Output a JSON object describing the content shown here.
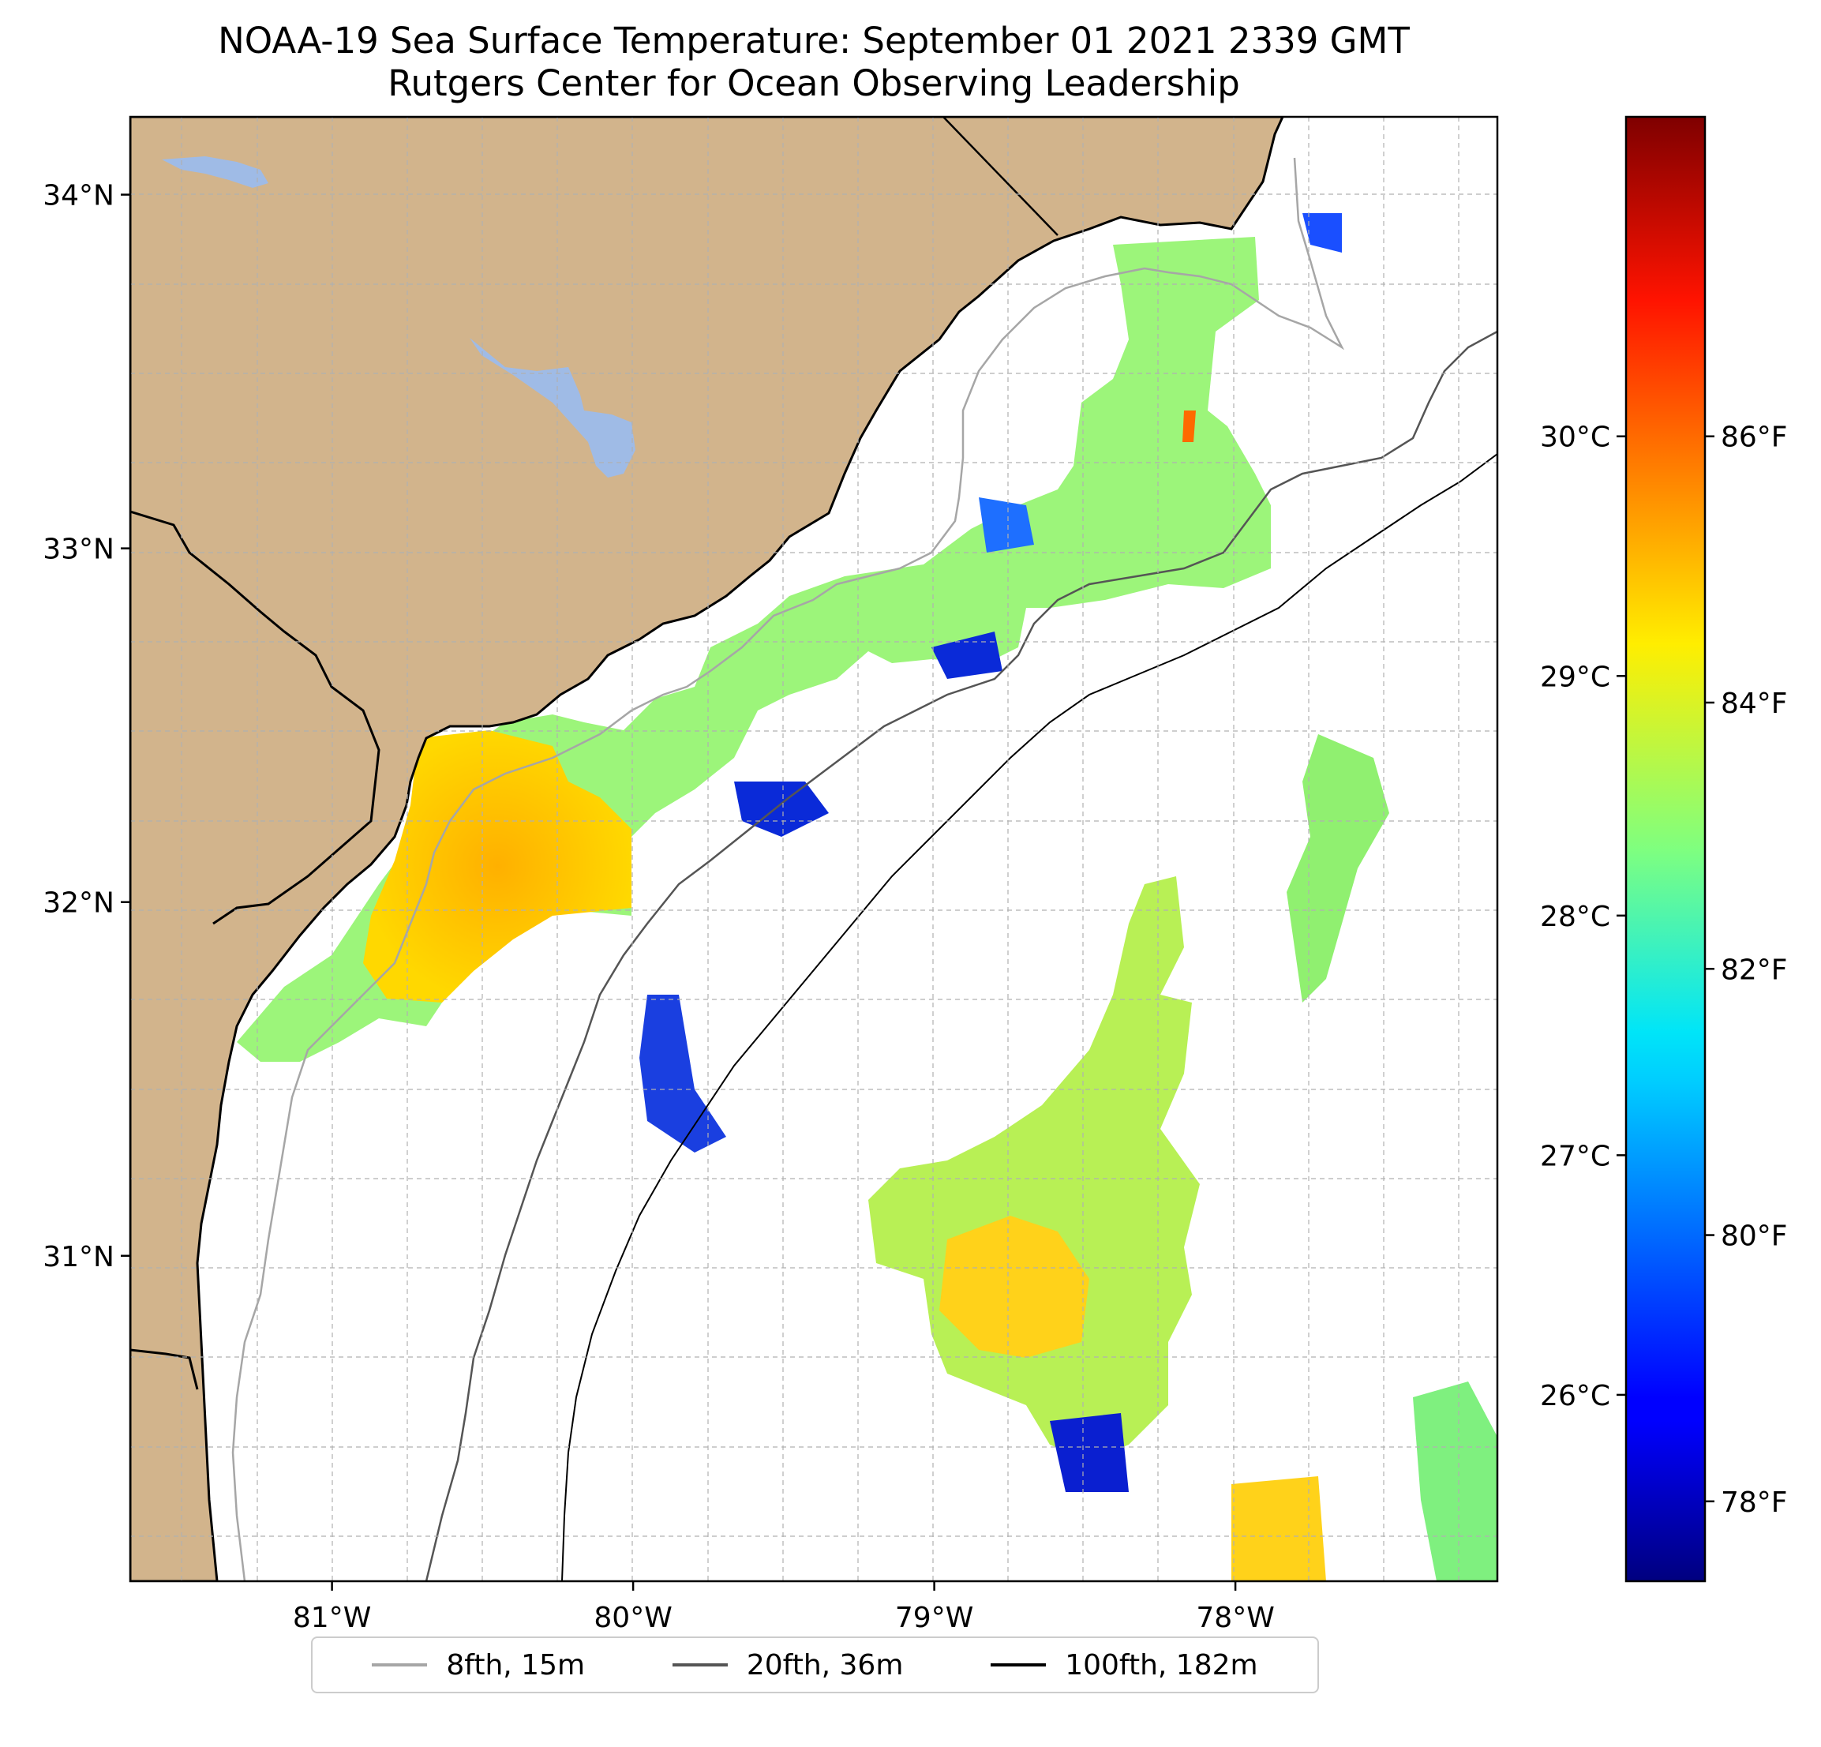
{
  "title": "NOAA-19 Sea Surface Temperature: September 01 2021 2339 GMT",
  "subtitle": "Rutgers Center for Ocean Observing Leadership",
  "map": {
    "lon_range": [
      -81.67,
      -77.13
    ],
    "lat_range": [
      30.08,
      34.22
    ],
    "lat_ticks": [
      {
        "value": 31,
        "label": "31°N"
      },
      {
        "value": 32,
        "label": "32°N"
      },
      {
        "value": 33,
        "label": "33°N"
      },
      {
        "value": 34,
        "label": "34°N"
      }
    ],
    "lon_ticks": [
      {
        "value": -81,
        "label": "81°W"
      },
      {
        "value": -80,
        "label": "80°W"
      },
      {
        "value": -79,
        "label": "79°W"
      },
      {
        "value": -78,
        "label": "78°W"
      }
    ],
    "grid": true,
    "land_color": "#d2b48c",
    "lake_color": "#9fbbe6"
  },
  "colorbar": {
    "colormap": "jet",
    "celsius_ticks": [
      {
        "value": 26,
        "label": "26°C"
      },
      {
        "value": 27,
        "label": "27°C"
      },
      {
        "value": 28,
        "label": "28°C"
      },
      {
        "value": 29,
        "label": "29°C"
      },
      {
        "value": 30,
        "label": "30°C"
      }
    ],
    "fahrenheit_ticks": [
      {
        "value": 78,
        "label": "78°F"
      },
      {
        "value": 80,
        "label": "80°F"
      },
      {
        "value": 82,
        "label": "82°F"
      },
      {
        "value": 84,
        "label": "84°F"
      },
      {
        "value": 86,
        "label": "86°F"
      }
    ],
    "range_f": [
      77.4,
      88.4
    ]
  },
  "legend": [
    {
      "label": "8fth, 15m",
      "color": "#a6a6a6"
    },
    {
      "label": "20fth, 36m",
      "color": "#555555"
    },
    {
      "label": "100fth, 182m",
      "color": "#000000"
    }
  ]
}
